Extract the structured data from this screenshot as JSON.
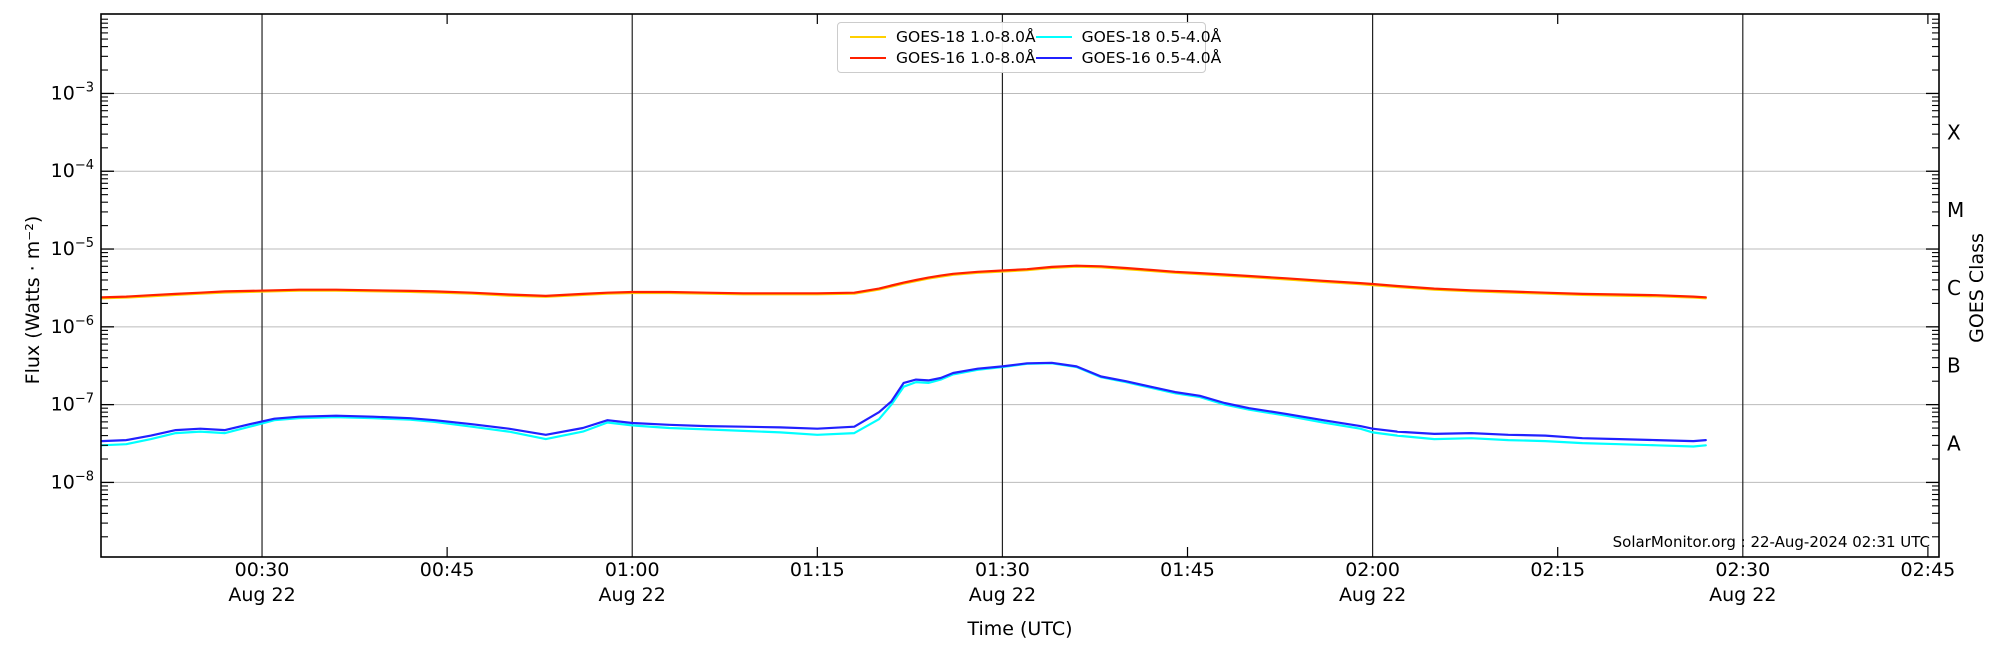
{
  "figure": {
    "watermark": "SolarMonitor.org : 22-Aug-2024 02:31 UTC",
    "xlabel": "Time (UTC)",
    "ylabel_left": "Flux (Watts · m⁻²)",
    "ylabel_right": "GOES Class",
    "background": "#ffffff",
    "border_color": "#000000",
    "decade_grid_color": "#bbbbbb",
    "time_grid_color": "#222222"
  },
  "axes": {
    "y_decades": [
      -3,
      -4,
      -5,
      -6,
      -7,
      -8
    ],
    "x_ticks": [
      {
        "minutes": 30,
        "label": "00:30",
        "date": "Aug 22"
      },
      {
        "minutes": 45,
        "label": "00:45",
        "date": ""
      },
      {
        "minutes": 60,
        "label": "01:00",
        "date": "Aug 22"
      },
      {
        "minutes": 75,
        "label": "01:15",
        "date": ""
      },
      {
        "minutes": 90,
        "label": "01:30",
        "date": "Aug 22"
      },
      {
        "minutes": 105,
        "label": "01:45",
        "date": ""
      },
      {
        "minutes": 120,
        "label": "02:00",
        "date": "Aug 22"
      },
      {
        "minutes": 135,
        "label": "02:15",
        "date": ""
      },
      {
        "minutes": 150,
        "label": "02:30",
        "date": "Aug 22"
      },
      {
        "minutes": 165,
        "label": "02:45",
        "date": ""
      }
    ],
    "goes_classes": [
      {
        "label": "X",
        "decade_mid": -3.5
      },
      {
        "label": "M",
        "decade_mid": -4.5
      },
      {
        "label": "C",
        "decade_mid": -5.5
      },
      {
        "label": "B",
        "decade_mid": -6.5
      },
      {
        "label": "A",
        "decade_mid": -7.5
      }
    ]
  },
  "legend": {
    "items": [
      {
        "label": "GOES-18 1.0-8.0Å",
        "color": "#ffd000"
      },
      {
        "label": "GOES-18 0.5-4.0Å",
        "color": "#00ffff"
      },
      {
        "label": "GOES-16 1.0-8.0Å",
        "color": "#ff2000"
      },
      {
        "label": "GOES-16 0.5-4.0Å",
        "color": "#2121ff"
      }
    ]
  },
  "chart_data": {
    "type": "line",
    "title": "",
    "xlabel": "Time (UTC)",
    "ylabel": "Flux (Watts · m⁻²)",
    "x_units": "minutes after 00:00 UTC, 22-Aug-2024",
    "xlim_minutes": [
      16.95,
      165.9
    ],
    "ylim": [
      1.1e-09,
      0.0105
    ],
    "grid_x_minutes": [
      30,
      60,
      90,
      120,
      150
    ],
    "x_minutes_utc": [
      17,
      19,
      21,
      23,
      25,
      27,
      29,
      31,
      33,
      36,
      39,
      42,
      44,
      47,
      50,
      53,
      56,
      58,
      60,
      63,
      66,
      69,
      72,
      75,
      78,
      80,
      81,
      82,
      83,
      84,
      85,
      86,
      88,
      90,
      92,
      94,
      96,
      98,
      100,
      102,
      104,
      106,
      108,
      110,
      113,
      116,
      119,
      120,
      122,
      125,
      128,
      131,
      134,
      137,
      140,
      143,
      146,
      147
    ],
    "series": [
      {
        "name": "GOES-18 1.0-8.0Å",
        "color": "#ffd000",
        "values": [
          2.33e-06,
          2.38e-06,
          2.47e-06,
          2.57e-06,
          2.67e-06,
          2.76e-06,
          2.81e-06,
          2.86e-06,
          2.91e-06,
          2.91e-06,
          2.86e-06,
          2.81e-06,
          2.76e-06,
          2.67e-06,
          2.52e-06,
          2.43e-06,
          2.57e-06,
          2.67e-06,
          2.72e-06,
          2.72e-06,
          2.67e-06,
          2.62e-06,
          2.62e-06,
          2.62e-06,
          2.67e-06,
          3.01e-06,
          3.3e-06,
          3.59e-06,
          3.88e-06,
          4.17e-06,
          4.41e-06,
          4.66e-06,
          4.95e-06,
          5.14e-06,
          5.34e-06,
          5.72e-06,
          5.92e-06,
          5.82e-06,
          5.53e-06,
          5.24e-06,
          4.95e-06,
          4.75e-06,
          4.56e-06,
          4.37e-06,
          4.07e-06,
          3.78e-06,
          3.54e-06,
          3.44e-06,
          3.25e-06,
          3.01e-06,
          2.86e-06,
          2.76e-06,
          2.67e-06,
          2.57e-06,
          2.52e-06,
          2.47e-06,
          2.38e-06,
          2.33e-06
        ]
      },
      {
        "name": "GOES-16 1.0-8.0Å",
        "color": "#ff2000",
        "values": [
          2.4e-06,
          2.45e-06,
          2.55e-06,
          2.65e-06,
          2.75e-06,
          2.85e-06,
          2.9e-06,
          2.95e-06,
          3e-06,
          3e-06,
          2.95e-06,
          2.9e-06,
          2.85e-06,
          2.75e-06,
          2.6e-06,
          2.5e-06,
          2.65e-06,
          2.75e-06,
          2.8e-06,
          2.8e-06,
          2.75e-06,
          2.7e-06,
          2.7e-06,
          2.7e-06,
          2.75e-06,
          3.1e-06,
          3.4e-06,
          3.7e-06,
          4e-06,
          4.3e-06,
          4.55e-06,
          4.8e-06,
          5.1e-06,
          5.3e-06,
          5.5e-06,
          5.9e-06,
          6.1e-06,
          6e-06,
          5.7e-06,
          5.4e-06,
          5.1e-06,
          4.9e-06,
          4.7e-06,
          4.5e-06,
          4.2e-06,
          3.9e-06,
          3.65e-06,
          3.55e-06,
          3.35e-06,
          3.1e-06,
          2.95e-06,
          2.85e-06,
          2.75e-06,
          2.65e-06,
          2.6e-06,
          2.55e-06,
          2.45e-06,
          2.4e-06
        ]
      },
      {
        "name": "GOES-18 0.5-4.0Å",
        "color": "#00ffff",
        "values": [
          3e-08,
          3.1e-08,
          3.6e-08,
          4.3e-08,
          4.5e-08,
          4.3e-08,
          5.2e-08,
          6.3e-08,
          6.7e-08,
          6.9e-08,
          6.7e-08,
          6.4e-08,
          6e-08,
          5.2e-08,
          4.5e-08,
          3.6e-08,
          4.5e-08,
          5.9e-08,
          5.4e-08,
          5e-08,
          4.8e-08,
          4.6e-08,
          4.4e-08,
          4.1e-08,
          4.3e-08,
          6.5e-08,
          1e-07,
          1.7e-07,
          1.95e-07,
          1.9e-07,
          2.1e-07,
          2.45e-07,
          2.8e-07,
          3.05e-07,
          3.35e-07,
          3.4e-07,
          3.05e-07,
          2.25e-07,
          1.95e-07,
          1.65e-07,
          1.4e-07,
          1.25e-07,
          1e-07,
          8.6e-08,
          7.2e-08,
          5.9e-08,
          4.9e-08,
          4.4e-08,
          4e-08,
          3.6e-08,
          3.7e-08,
          3.5e-08,
          3.4e-08,
          3.2e-08,
          3.1e-08,
          3e-08,
          2.9e-08,
          3e-08
        ]
      },
      {
        "name": "GOES-16 0.5-4.0Å",
        "color": "#2121ff",
        "values": [
          3.4e-08,
          3.5e-08,
          4e-08,
          4.7e-08,
          4.9e-08,
          4.7e-08,
          5.6e-08,
          6.6e-08,
          7e-08,
          7.2e-08,
          7e-08,
          6.7e-08,
          6.3e-08,
          5.6e-08,
          4.9e-08,
          4.1e-08,
          5e-08,
          6.3e-08,
          5.8e-08,
          5.5e-08,
          5.3e-08,
          5.2e-08,
          5.1e-08,
          4.9e-08,
          5.2e-08,
          8e-08,
          1.1e-07,
          1.9e-07,
          2.1e-07,
          2.05e-07,
          2.2e-07,
          2.55e-07,
          2.9e-07,
          3.1e-07,
          3.4e-07,
          3.45e-07,
          3.1e-07,
          2.3e-07,
          2e-07,
          1.7e-07,
          1.45e-07,
          1.3e-07,
          1.05e-07,
          9e-08,
          7.6e-08,
          6.3e-08,
          5.3e-08,
          4.9e-08,
          4.5e-08,
          4.2e-08,
          4.3e-08,
          4.1e-08,
          4e-08,
          3.7e-08,
          3.6e-08,
          3.5e-08,
          3.4e-08,
          3.5e-08
        ]
      }
    ],
    "legend_position": "upper center",
    "grid": "decade horizontal lines + 30-min vertical lines"
  }
}
